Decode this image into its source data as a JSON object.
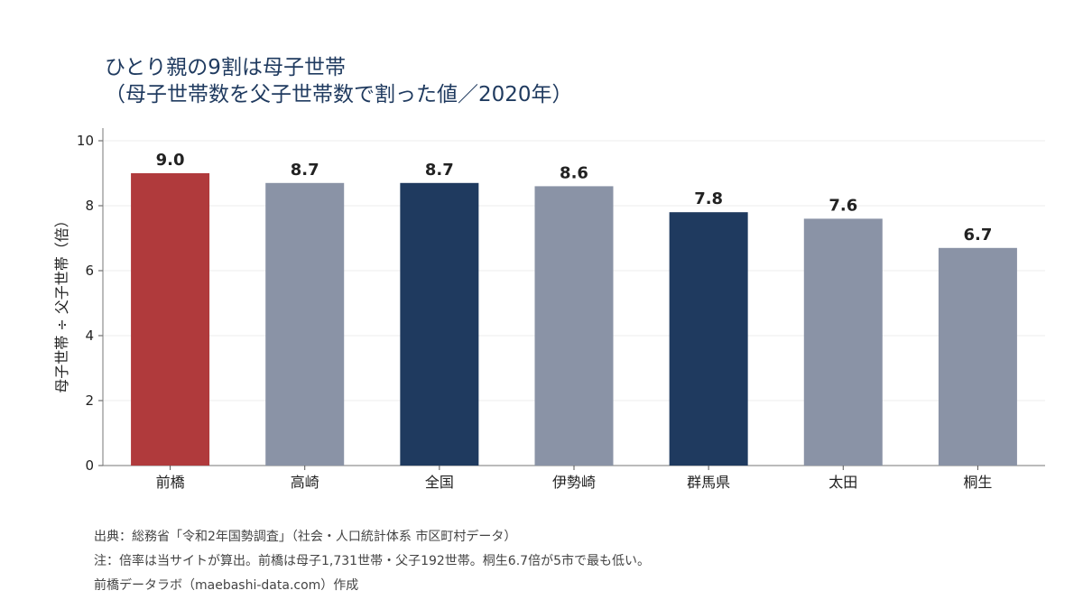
{
  "title_line1": "ひとり親の9割は母子世帯",
  "title_line2": "（母子世帯数を父子世帯数で割った値／2020年）",
  "source_line": "出典：総務省「令和2年国勢調査」（社会・人口統計体系 市区町村データ）",
  "note_line": "注：倍率は当サイトが算出。前橋は母子1,731世帯・父子192世帯。桐生6.7倍が5市で最も低い。",
  "credit_line": "前橋データラボ（maebashi-data.com）作成",
  "colors": {
    "highlight": "#b03a3c",
    "reference": "#1f3a5f",
    "other": "#8a93a6"
  },
  "chart_data": {
    "type": "bar",
    "categories": [
      "前橋",
      "高崎",
      "全国",
      "伊勢崎",
      "群馬県",
      "太田",
      "桐生"
    ],
    "values": [
      9.0,
      8.7,
      8.7,
      8.6,
      7.8,
      7.6,
      6.7
    ],
    "value_labels": [
      "9.0",
      "8.7",
      "8.7",
      "8.6",
      "7.8",
      "7.6",
      "6.7"
    ],
    "bar_roles": [
      "highlight",
      "other",
      "reference",
      "other",
      "reference",
      "other",
      "other"
    ],
    "ylabel": "母子世帯 ÷ 父子世帯（倍）",
    "ylim": [
      0,
      10
    ],
    "yticks": [
      0,
      2,
      4,
      6,
      8,
      10
    ],
    "grid": true
  }
}
